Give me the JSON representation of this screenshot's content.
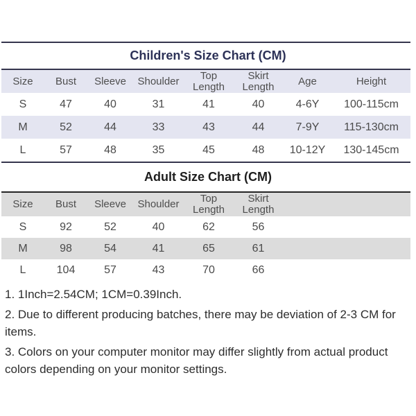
{
  "colors": {
    "children_stripe": "#e4e5f1",
    "adult_stripe": "#dcdcdc",
    "children_title_color": "#2c3157",
    "adult_title_color": "#1e1e1e",
    "rule_color": "#35354d",
    "background": "#ffffff"
  },
  "children_chart": {
    "title": "Children's Size Chart (CM)",
    "columns": [
      "Size",
      "Bust",
      "Sleeve",
      "Shoulder",
      "Top Length",
      "Skirt Length",
      "Age",
      "Height"
    ],
    "rows": [
      [
        "S",
        "47",
        "40",
        "31",
        "41",
        "40",
        "4-6Y",
        "100-115cm"
      ],
      [
        "M",
        "52",
        "44",
        "33",
        "43",
        "44",
        "7-9Y",
        "115-130cm"
      ],
      [
        "L",
        "57",
        "48",
        "35",
        "45",
        "48",
        "10-12Y",
        "130-145cm"
      ]
    ]
  },
  "adult_chart": {
    "title": "Adult Size Chart (CM)",
    "columns": [
      "Size",
      "Bust",
      "Sleeve",
      "Shoulder",
      "Top Length",
      "Skirt Length"
    ],
    "rows": [
      [
        "S",
        "92",
        "52",
        "40",
        "62",
        "56"
      ],
      [
        "M",
        "98",
        "54",
        "41",
        "65",
        "61"
      ],
      [
        "L",
        "104",
        "57",
        "43",
        "70",
        "66"
      ]
    ]
  },
  "notes": [
    "1. 1Inch=2.54CM; 1CM=0.39Inch.",
    "2. Due to different producing batches, there may be deviation of 2-3 CM for items.",
    "3. Colors on your computer monitor may differ slightly from actual product colors depending on your monitor settings."
  ]
}
